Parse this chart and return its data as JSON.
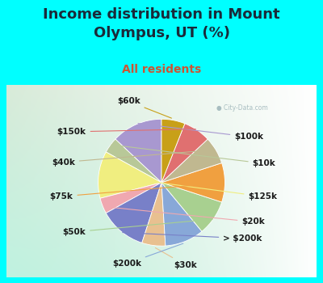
{
  "title": "Income distribution in Mount\nOlympus, UT (%)",
  "subtitle": "All residents",
  "watermark": "City-Data.com",
  "bg_cyan": "#00FFFF",
  "title_color": "#1a2a3a",
  "subtitle_color": "#cc5533",
  "labels": [
    "$100k",
    "$10k",
    "$125k",
    "$20k",
    "> $200k",
    "$30k",
    "$200k",
    "$50k",
    "$75k",
    "$40k",
    "$150k",
    "$60k"
  ],
  "values": [
    13,
    4,
    12,
    4,
    12,
    6,
    10,
    9,
    10,
    7,
    7,
    6
  ],
  "colors": [
    "#a898d0",
    "#b8c898",
    "#f0ee80",
    "#f0a8b0",
    "#7880c8",
    "#e8c090",
    "#88a8d8",
    "#a8d090",
    "#f0a040",
    "#c0b890",
    "#e07070",
    "#c8a018"
  ],
  "startangle": 90,
  "title_fontsize": 13,
  "subtitle_fontsize": 10,
  "label_fontsize": 7.5
}
